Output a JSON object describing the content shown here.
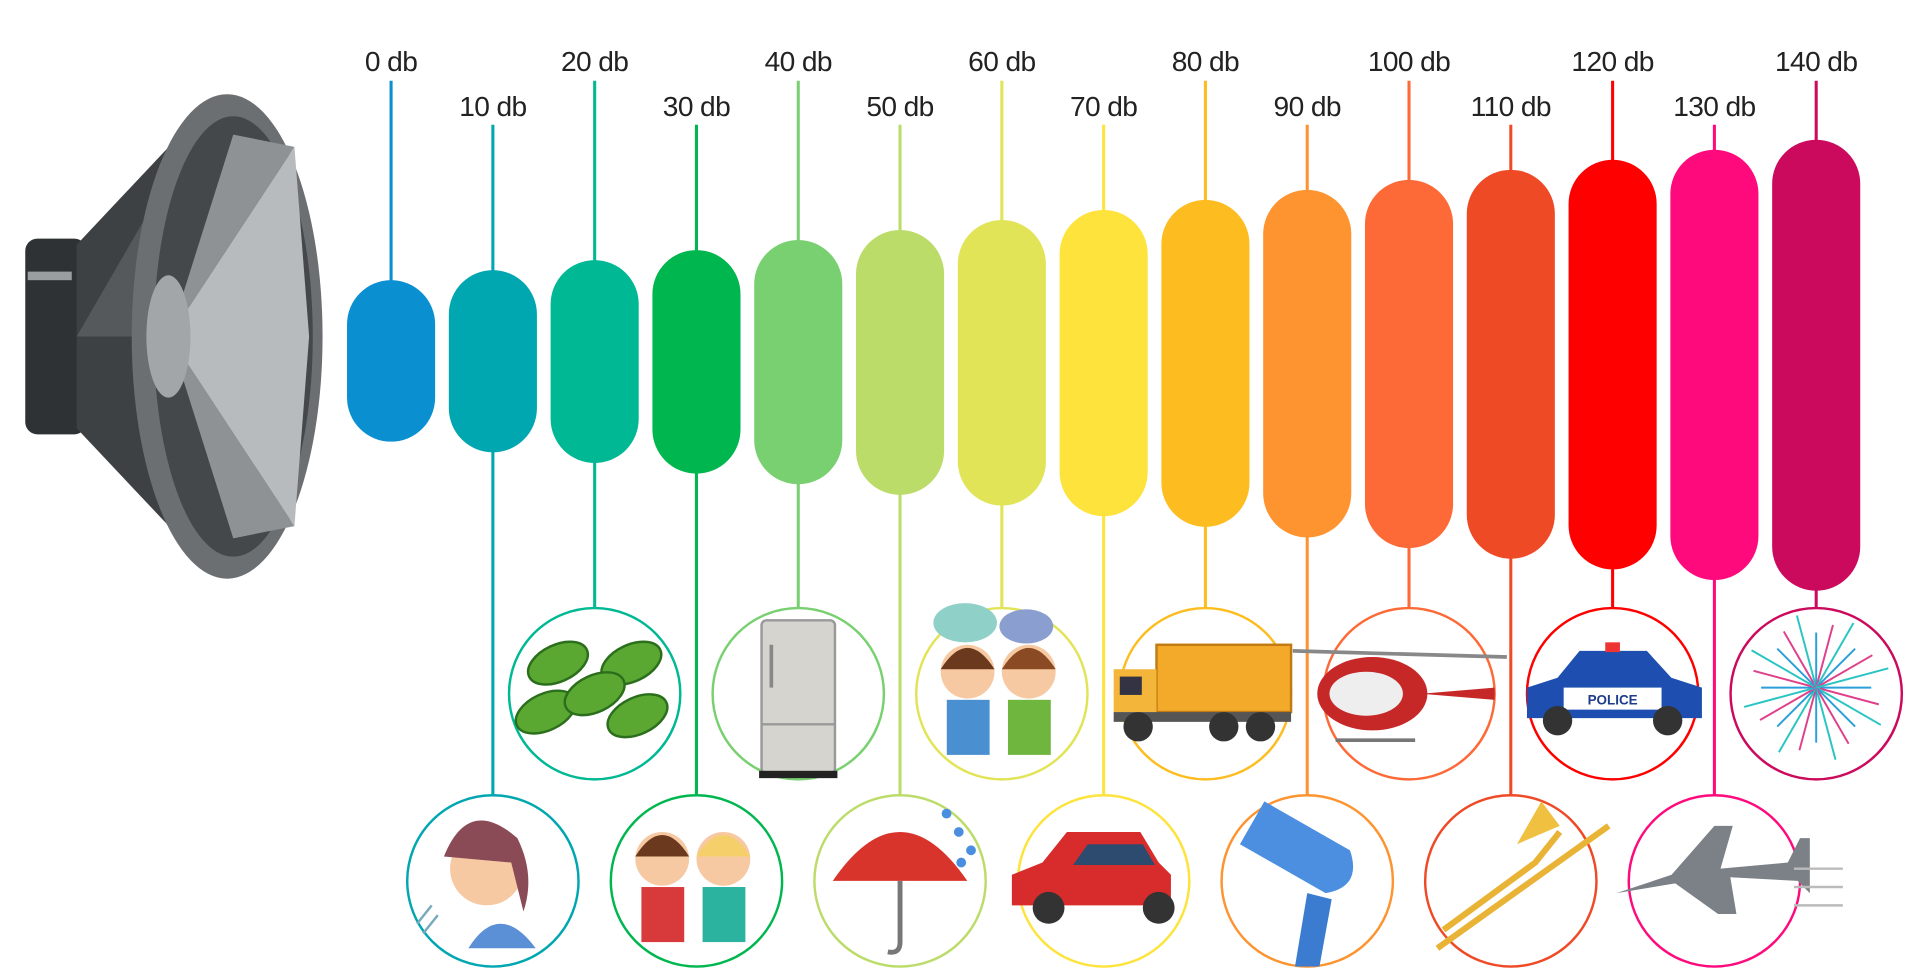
{
  "levels": [
    {
      "label": "0 db",
      "color": "#0a8fd1",
      "source_icon": "none"
    },
    {
      "label": "10 db",
      "color": "#00a6b0",
      "source_icon": "breathing-person-icon"
    },
    {
      "label": "20 db",
      "color": "#00b894",
      "source_icon": "rustling-leaves-icon"
    },
    {
      "label": "30 db",
      "color": "#00b64f",
      "source_icon": "whispering-kids-icon"
    },
    {
      "label": "40 db",
      "color": "#79d070",
      "source_icon": "refrigerator-icon"
    },
    {
      "label": "50 db",
      "color": "#bcdc6a",
      "source_icon": "umbrella-rain-icon"
    },
    {
      "label": "60 db",
      "color": "#e2e457",
      "source_icon": "talking-kids-icon"
    },
    {
      "label": "70 db",
      "color": "#fde33c",
      "source_icon": "car-icon"
    },
    {
      "label": "80 db",
      "color": "#fdbd20",
      "source_icon": "dump-truck-icon"
    },
    {
      "label": "90 db",
      "color": "#fd9430",
      "source_icon": "hair-dryer-icon"
    },
    {
      "label": "100 db",
      "color": "#fd6a38",
      "source_icon": "helicopter-icon"
    },
    {
      "label": "110 db",
      "color": "#ef4a26",
      "source_icon": "trombone-icon"
    },
    {
      "label": "120 db",
      "color": "#fe0000",
      "source_icon": "police-car-icon",
      "picture_text": "POLICE"
    },
    {
      "label": "130 db",
      "color": "#fe0a7d",
      "source_icon": "fighter-jet-icon"
    },
    {
      "label": "140 db",
      "color": "#cb0a5d",
      "source_icon": "fireworks-icon"
    }
  ],
  "speaker_icon": "loudspeaker-icon"
}
